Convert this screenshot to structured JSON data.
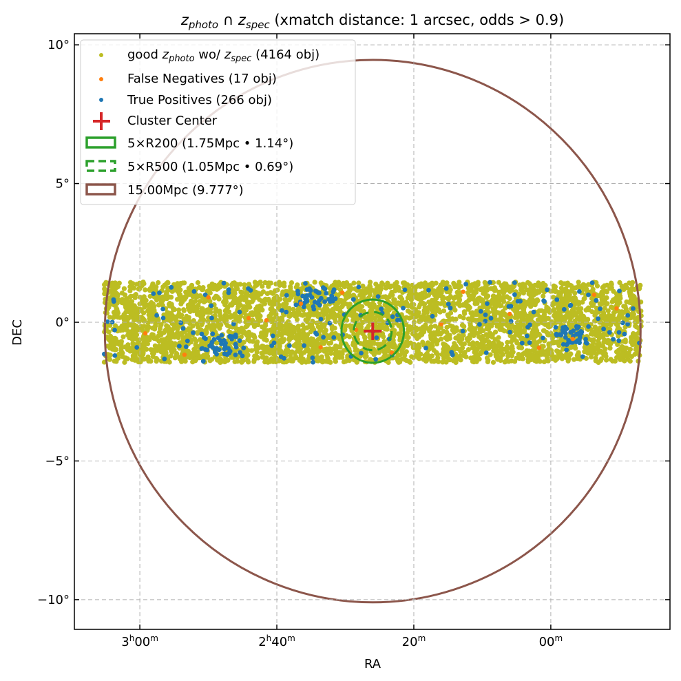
{
  "chart_data": {
    "type": "scatter",
    "title": {
      "z1": "z",
      "z1_sub": "photo",
      "cap": " ∩ ",
      "z2": "z",
      "z2_sub": "spec",
      "rest": " (xmatch distance: 1 arcsec, odds > 0.9)"
    },
    "xlabel": "RA",
    "ylabel": "DEC",
    "xlim_deg": [
      47.39,
      25.65
    ],
    "ylim_deg": [
      -11.07,
      10.4
    ],
    "grid": true,
    "legend_placement": "top-left",
    "xticks": [
      {
        "ra_deg": 45,
        "h": "3",
        "hsup": "h",
        "m": "00",
        "msup": "m"
      },
      {
        "ra_deg": 40,
        "h": "2",
        "hsup": "h",
        "m": "40",
        "msup": "m"
      },
      {
        "ra_deg": 35,
        "h": "",
        "hsup": "",
        "m": "20",
        "msup": "m"
      },
      {
        "ra_deg": 30,
        "h": "",
        "hsup": "",
        "m": "00",
        "msup": "m"
      }
    ],
    "yticks": [
      {
        "dec_deg": 10,
        "label": "10°"
      },
      {
        "dec_deg": 5,
        "label": "5°"
      },
      {
        "dec_deg": 0,
        "label": "0°"
      },
      {
        "dec_deg": -5,
        "label": "−5°"
      },
      {
        "dec_deg": -10,
        "label": "−10°"
      }
    ],
    "cluster_center": {
      "ra": 36.5,
      "dec": -0.32
    },
    "circles": [
      {
        "name": "5×R200",
        "radius_deg": 1.14,
        "radius_mpc": 1.75,
        "style": "solid",
        "color": "#2ca02c"
      },
      {
        "name": "5×R500",
        "radius_deg": 0.69,
        "radius_mpc": 1.05,
        "style": "dashed",
        "color": "#2ca02c"
      },
      {
        "name": "15.00Mpc",
        "radius_deg": 9.777,
        "radius_mpc": 15.0,
        "style": "solid",
        "color": "#8c564b"
      }
    ],
    "footprint": {
      "ra_range": [
        26.7,
        46.3
      ],
      "dec_range": [
        -1.45,
        1.45
      ]
    },
    "series": [
      {
        "name": "good zphoto wo/ zspec",
        "count": 4164,
        "color": "#bcbd22"
      },
      {
        "name": "False Negatives",
        "count": 17,
        "color": "#ff7f0e",
        "points": [
          [
            39.12,
            0.67
          ],
          [
            37.61,
            1.07
          ],
          [
            41.03,
            0.15
          ],
          [
            40.38,
            0.07
          ],
          [
            37.11,
            -0.27
          ],
          [
            34.0,
            -0.07
          ],
          [
            30.43,
            -0.92
          ],
          [
            28.42,
            0.99
          ],
          [
            43.37,
            -1.17
          ],
          [
            42.5,
            0.9
          ],
          [
            44.8,
            -0.4
          ],
          [
            33.2,
            1.1
          ],
          [
            31.5,
            0.3
          ],
          [
            29.2,
            -0.6
          ],
          [
            35.8,
            -1.1
          ],
          [
            38.4,
            -0.9
          ],
          [
            27.6,
            0.5
          ]
        ]
      },
      {
        "name": "True Positives",
        "count": 266,
        "color": "#1f77b4"
      }
    ],
    "legend": [
      {
        "pre": "good ",
        "z1": "z",
        "s1": "photo",
        "mid": " wo/ ",
        "z2": "z",
        "s2": "spec",
        "post": " (4164 obj)"
      },
      {
        "label": "False Negatives (17 obj)"
      },
      {
        "label": "True Positives (266 obj)"
      },
      {
        "label": "Cluster Center"
      },
      {
        "label": "5×R200 (1.75Mpc • 1.14$^\\circ$)",
        "text": "5×R200 (1.75Mpc • 1.14°)"
      },
      {
        "text": "5×R500 (1.05Mpc • 0.69°)"
      },
      {
        "text": "15.00Mpc (9.777°)"
      }
    ],
    "colors": {
      "good": "#bcbd22",
      "fn": "#ff7f0e",
      "tp": "#1f77b4",
      "center": "#d62728",
      "r200": "#2ca02c",
      "big": "#8c564b"
    }
  }
}
